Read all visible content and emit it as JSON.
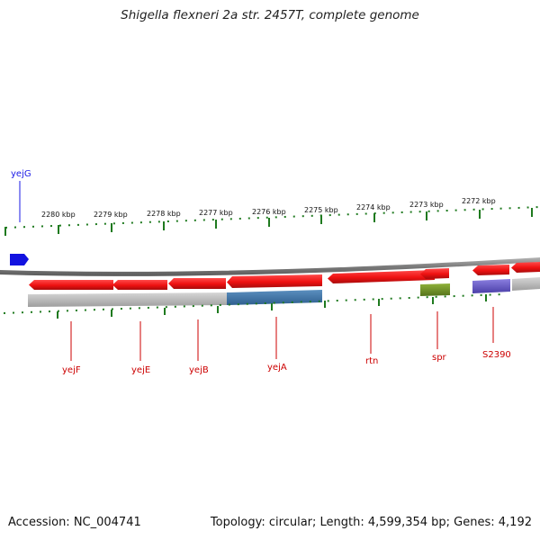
{
  "title": "Shigella flexneri 2a str. 2457T, complete genome",
  "footer": {
    "accession": "Accession: NC_004741",
    "stats": "Topology: circular; Length: 4,599,354 bp; Genes: 4,192"
  },
  "colors": {
    "cds": "#ee1111",
    "cds_dark": "#b80e0e",
    "ticks": "#1f7a1f",
    "backbone": "#8a8a8a",
    "label_red": "#cc0000",
    "label_blue": "#1a1ae6"
  },
  "scale_labels": [
    "2280 kbp",
    "2279 kbp",
    "2278 kbp",
    "2277 kbp",
    "2276 kbp",
    "2275 kbp",
    "2274 kbp",
    "2273 kbp",
    "2272 kbp"
  ],
  "gene_labels": {
    "yejG": "yejG",
    "yejF": "yejF",
    "yejE": "yejE",
    "yejB": "yejB",
    "yejA": "yejA",
    "rtn": "rtn",
    "spr": "spr",
    "S2390": "S2390"
  }
}
